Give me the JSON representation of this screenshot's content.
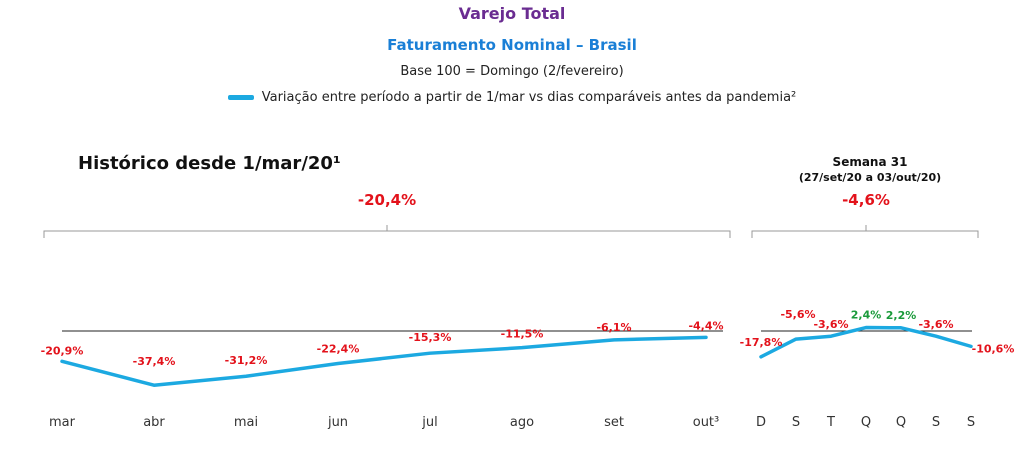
{
  "header": {
    "title": "Varejo Total",
    "subtitle": "Faturamento Nominal – Brasil",
    "base": "Base 100 = Domingo (2/fevereiro)",
    "legend_label": "Variação entre período a partir de 1/mar vs dias comparáveis antes da pandemia²"
  },
  "colors": {
    "line": "#1ca9e1",
    "negative": "#e3121b",
    "positive": "#1a9a3a",
    "title": "#6a2c91",
    "subtitle": "#1a7fd6"
  },
  "chart_data": [
    {
      "type": "line",
      "title": "Histórico desde 1/mar/20¹",
      "categories": [
        "mar",
        "abr",
        "mai",
        "jun",
        "jul",
        "ago",
        "set",
        "out³"
      ],
      "series": [
        {
          "values": [
            -20.9,
            -37.4,
            -31.2,
            -22.4,
            -15.3,
            -11.5,
            -6.1,
            -4.4
          ]
        }
      ],
      "data_labels": [
        "-20,9%",
        "-37,4%",
        "-31,2%",
        "-22,4%",
        "-15,3%",
        "-11,5%",
        "-6,1%",
        "-4,4%"
      ],
      "aggregate_label": "-20,4%",
      "baseline": 0,
      "grid": false
    },
    {
      "type": "line",
      "title": "Semana 31",
      "subtitle": "(27/set/20 a 03/out/20)",
      "categories": [
        "D",
        "S",
        "T",
        "Q",
        "Q",
        "S",
        "S"
      ],
      "series": [
        {
          "values": [
            -17.8,
            -5.6,
            -3.6,
            2.4,
            2.2,
            -3.6,
            -10.6
          ]
        }
      ],
      "data_labels": [
        "-17,8%",
        "-5,6%",
        "-3,6%",
        "2,4%",
        "2,2%",
        "-3,6%",
        "-10,6%"
      ],
      "aggregate_label": "-4,6%",
      "baseline": 0,
      "grid": false
    }
  ]
}
